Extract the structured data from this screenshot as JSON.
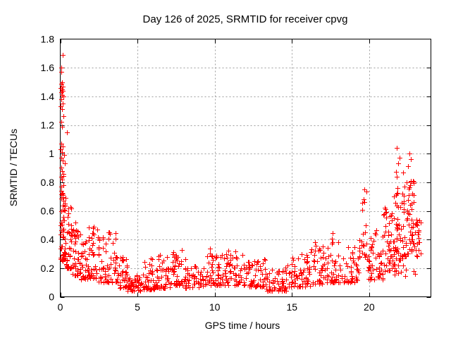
{
  "window": {
    "background": "#ffffff"
  },
  "chart_data": {
    "type": "scatter",
    "title": "Day 126 of 2025, SRMTID for receiver cpvg",
    "xlabel": "GPS time / hours",
    "ylabel": "SRMTID / TECUs",
    "xlim": [
      0,
      24
    ],
    "ylim": [
      0,
      1.8
    ],
    "xticks": [
      0,
      5,
      10,
      15,
      20
    ],
    "xtick_labels": [
      "0",
      "5",
      "10",
      "15",
      "20"
    ],
    "yticks": [
      0,
      0.2,
      0.4,
      0.6,
      0.8,
      1.0,
      1.2,
      1.4,
      1.6,
      1.8
    ],
    "ytick_labels": [
      "0",
      "0.2",
      "0.4",
      "0.6",
      "0.8",
      "1",
      "1.2",
      "1.4",
      "1.6",
      "1.8"
    ],
    "grid": true,
    "grid_style": "dashed",
    "legend": "none",
    "marker": "plus",
    "marker_size": 7,
    "marker_color": "#ff0000",
    "grid_color": "#9e9e9e",
    "axis_color": "#000000",
    "background_color": "#ffffff",
    "seed": 126126,
    "notable_points": [
      [
        0.14,
        1.69
      ],
      [
        0.05,
        1.6
      ],
      [
        0.09,
        1.57
      ],
      [
        0.1,
        1.5
      ],
      [
        0.06,
        1.49
      ],
      [
        0.16,
        1.47
      ],
      [
        0.03,
        1.46
      ],
      [
        0.13,
        1.45
      ],
      [
        0.18,
        1.44
      ],
      [
        0.05,
        1.43
      ],
      [
        0.1,
        1.41
      ],
      [
        0.22,
        1.4
      ],
      [
        0.07,
        1.38
      ],
      [
        0.15,
        1.35
      ],
      [
        0.04,
        1.33
      ],
      [
        0.1,
        1.31
      ],
      [
        0.2,
        1.26
      ],
      [
        0.06,
        1.22
      ],
      [
        0.12,
        1.19
      ],
      [
        0.45,
        1.15
      ],
      [
        0.08,
        1.07
      ],
      [
        0.18,
        1.05
      ],
      [
        0.03,
        1.03
      ],
      [
        0.12,
        1.01
      ],
      [
        0.25,
        0.99
      ],
      [
        0.07,
        0.97
      ],
      [
        0.15,
        0.95
      ],
      [
        0.3,
        0.93
      ],
      [
        0.05,
        0.9
      ],
      [
        0.12,
        0.88
      ],
      [
        0.2,
        0.86
      ],
      [
        0.08,
        0.84
      ],
      [
        21.8,
        1.04
      ],
      [
        21.95,
        0.97
      ],
      [
        21.88,
        0.93
      ],
      [
        22.6,
        1.0
      ],
      [
        22.7,
        0.96
      ],
      [
        22.5,
        0.91
      ],
      [
        21.6,
        0.7
      ],
      [
        23.2,
        0.38
      ],
      [
        19.7,
        0.75
      ],
      [
        19.62,
        0.68
      ]
    ],
    "band_segments": [
      {
        "x0": 0.02,
        "x1": 0.35,
        "n": 60,
        "ylo": 0.25,
        "yhi": 0.85,
        "pow": 1.5
      },
      {
        "x0": 0.35,
        "x1": 0.8,
        "n": 38,
        "ylo": 0.2,
        "yhi": 0.66,
        "pow": 1.8
      },
      {
        "x0": 0.8,
        "x1": 1.35,
        "n": 40,
        "ylo": 0.15,
        "yhi": 0.52,
        "pow": 1.7
      },
      {
        "x0": 1.35,
        "x1": 1.85,
        "n": 30,
        "ylo": 0.12,
        "yhi": 0.4,
        "pow": 1.7
      },
      {
        "x0": 1.85,
        "x1": 2.45,
        "n": 36,
        "ylo": 0.13,
        "yhi": 0.5,
        "pow": 1.8
      },
      {
        "x0": 2.45,
        "x1": 3.1,
        "n": 36,
        "ylo": 0.1,
        "yhi": 0.42,
        "pow": 1.8
      },
      {
        "x0": 3.1,
        "x1": 3.75,
        "n": 32,
        "ylo": 0.1,
        "yhi": 0.48,
        "pow": 1.9
      },
      {
        "x0": 3.75,
        "x1": 4.35,
        "n": 30,
        "ylo": 0.06,
        "yhi": 0.28,
        "pow": 1.8
      },
      {
        "x0": 4.35,
        "x1": 5.3,
        "n": 46,
        "ylo": 0.04,
        "yhi": 0.16,
        "pow": 1.5
      },
      {
        "x0": 5.3,
        "x1": 6.15,
        "n": 42,
        "ylo": 0.05,
        "yhi": 0.27,
        "pow": 2.0
      },
      {
        "x0": 6.15,
        "x1": 7.15,
        "n": 46,
        "ylo": 0.06,
        "yhi": 0.3,
        "pow": 2.0
      },
      {
        "x0": 7.15,
        "x1": 8.1,
        "n": 46,
        "ylo": 0.08,
        "yhi": 0.35,
        "pow": 2.0
      },
      {
        "x0": 8.1,
        "x1": 9.25,
        "n": 48,
        "ylo": 0.06,
        "yhi": 0.22,
        "pow": 1.7
      },
      {
        "x0": 9.25,
        "x1": 10.6,
        "n": 56,
        "ylo": 0.08,
        "yhi": 0.35,
        "pow": 2.0
      },
      {
        "x0": 10.6,
        "x1": 12.0,
        "n": 56,
        "ylo": 0.08,
        "yhi": 0.33,
        "pow": 2.0
      },
      {
        "x0": 12.0,
        "x1": 13.35,
        "n": 56,
        "ylo": 0.07,
        "yhi": 0.27,
        "pow": 1.8
      },
      {
        "x0": 13.35,
        "x1": 14.7,
        "n": 56,
        "ylo": 0.04,
        "yhi": 0.22,
        "pow": 1.7
      },
      {
        "x0": 14.7,
        "x1": 16.2,
        "n": 62,
        "ylo": 0.07,
        "yhi": 0.3,
        "pow": 1.9
      },
      {
        "x0": 16.2,
        "x1": 17.45,
        "n": 52,
        "ylo": 0.09,
        "yhi": 0.4,
        "pow": 2.0
      },
      {
        "x0": 17.45,
        "x1": 18.6,
        "n": 46,
        "ylo": 0.1,
        "yhi": 0.45,
        "pow": 2.1
      },
      {
        "x0": 18.6,
        "x1": 19.45,
        "n": 36,
        "ylo": 0.1,
        "yhi": 0.4,
        "pow": 2.0
      },
      {
        "x0": 19.5,
        "x1": 19.85,
        "n": 16,
        "ylo": 0.28,
        "yhi": 0.78,
        "pow": 1.5
      },
      {
        "x0": 19.85,
        "x1": 20.9,
        "n": 52,
        "ylo": 0.12,
        "yhi": 0.47,
        "pow": 1.8
      },
      {
        "x0": 20.9,
        "x1": 21.7,
        "n": 52,
        "ylo": 0.18,
        "yhi": 0.63,
        "pow": 1.5
      },
      {
        "x0": 21.7,
        "x1": 22.45,
        "n": 56,
        "ylo": 0.25,
        "yhi": 0.92,
        "pow": 1.4
      },
      {
        "x0": 22.45,
        "x1": 23.0,
        "n": 46,
        "ylo": 0.3,
        "yhi": 0.82,
        "pow": 1.3
      },
      {
        "x0": 23.0,
        "x1": 23.35,
        "n": 18,
        "ylo": 0.28,
        "yhi": 0.6,
        "pow": 1.4
      },
      {
        "x0": 20.6,
        "x1": 23.1,
        "n": 14,
        "ylo": 0.14,
        "yhi": 0.3,
        "pow": 1.2
      }
    ]
  }
}
